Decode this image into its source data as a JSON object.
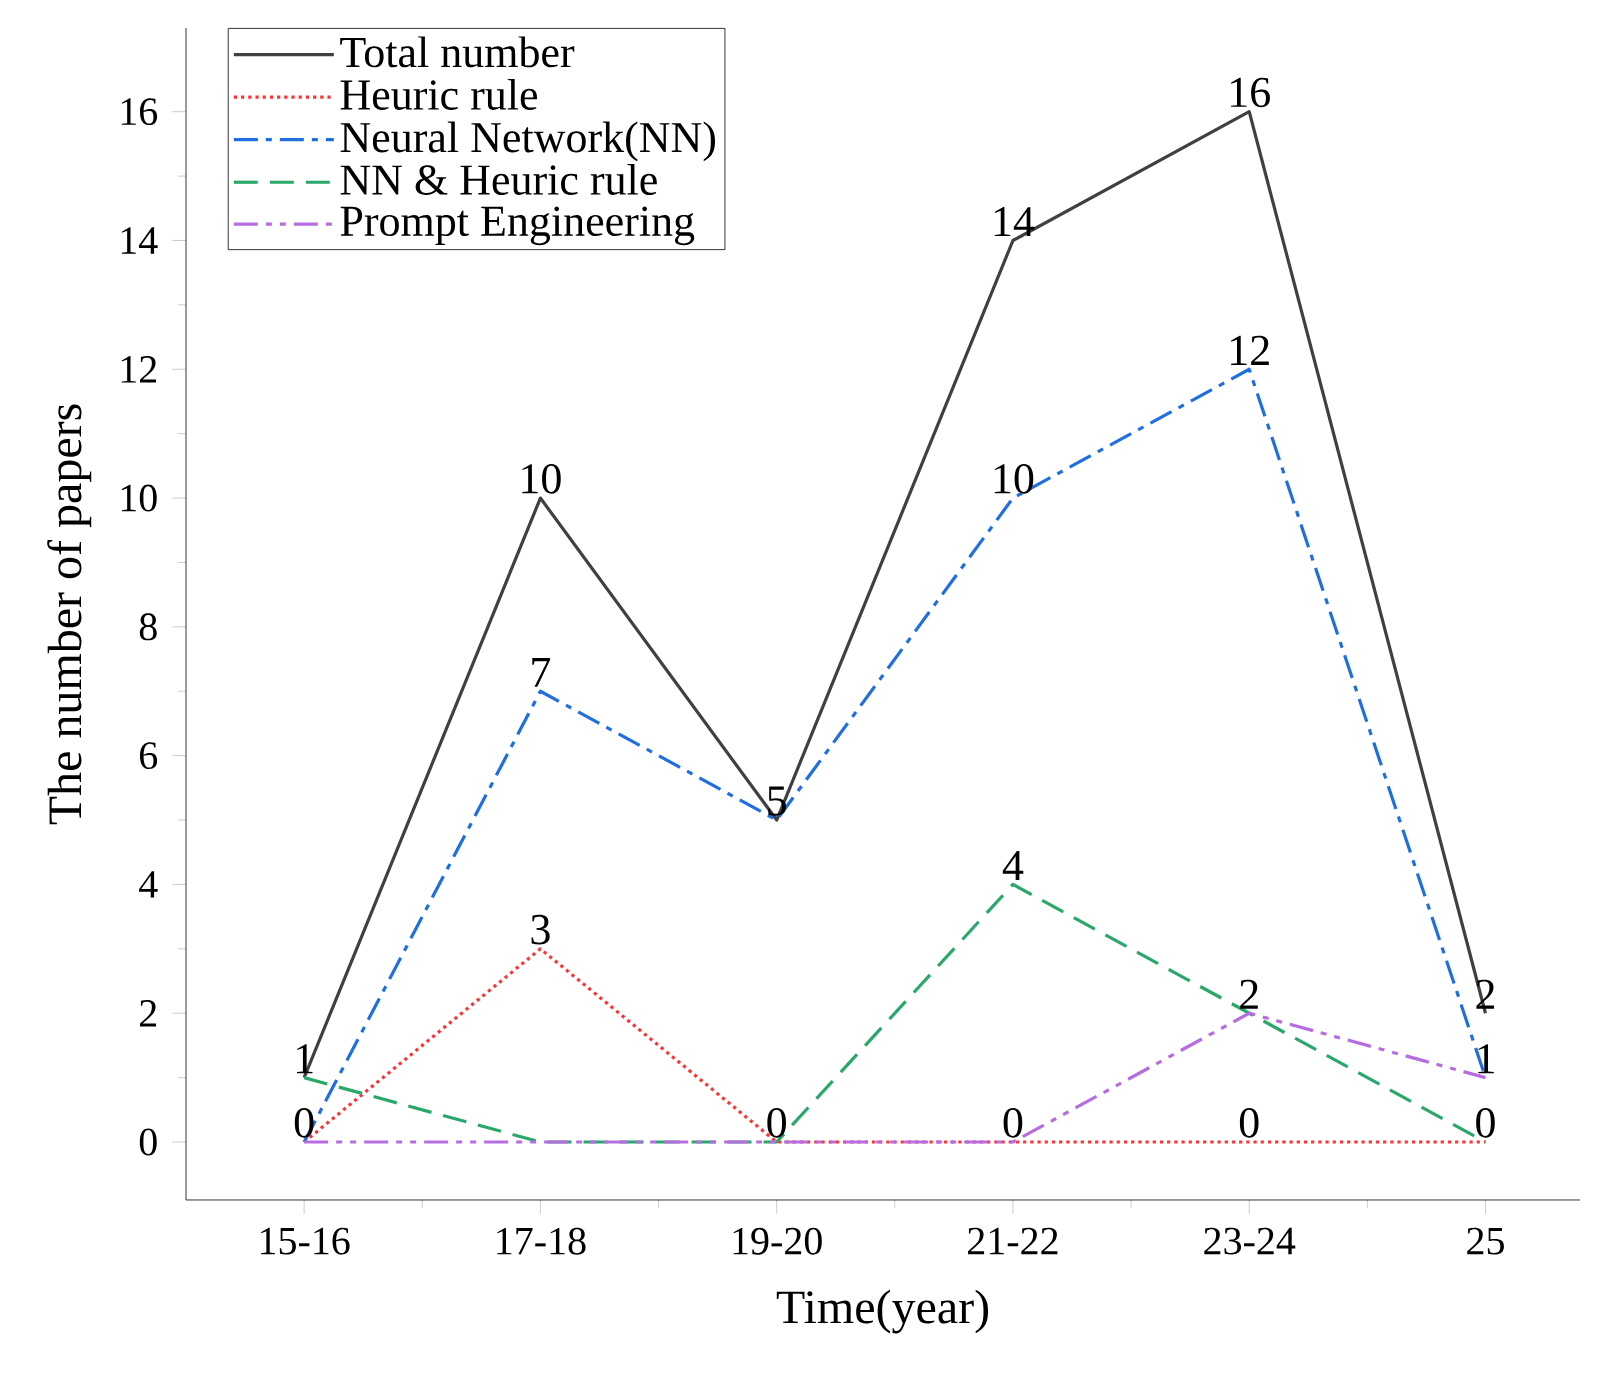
{
  "chart_data": {
    "type": "line",
    "xlabel": "Time(year)",
    "ylabel": "The number of papers",
    "categories": [
      "15-16",
      "17-18",
      "19-20",
      "21-22",
      "23-24",
      "25"
    ],
    "ylim": [
      -0.9,
      17.3
    ],
    "yticks": [
      0,
      2,
      4,
      6,
      8,
      10,
      12,
      14,
      16
    ],
    "legend": "top left",
    "series": [
      {
        "name": "Total number",
        "color": "#404040",
        "line_style": "solid",
        "values": [
          1,
          10,
          5,
          14,
          16,
          2
        ],
        "value_labels": [
          "1",
          "10",
          "5",
          "14",
          "16",
          "2"
        ]
      },
      {
        "name": "Heuric rule",
        "color": "#ff3333",
        "line_style": "dotted",
        "values": [
          0,
          3,
          0,
          0,
          0,
          0
        ],
        "value_labels": [
          "0",
          "3",
          "0",
          "0",
          "0",
          "0"
        ]
      },
      {
        "name": "Neural Network(NN)",
        "color": "#1f6fe0",
        "line_style": "dashdot",
        "values": [
          0,
          7,
          5,
          10,
          12,
          1
        ],
        "value_labels": [
          null,
          "7",
          null,
          "10",
          "12",
          "1"
        ]
      },
      {
        "name": "NN & Heuric rule",
        "color": "#2aa86a",
        "line_style": "dashed",
        "values": [
          1,
          0,
          0,
          4,
          2,
          0
        ],
        "value_labels": [
          null,
          null,
          null,
          "4",
          "2",
          null
        ]
      },
      {
        "name": "Prompt Engineering",
        "color": "#b66de0",
        "line_style": "dashdotdot",
        "values": [
          0,
          0,
          0,
          0,
          2,
          1
        ]
      }
    ]
  }
}
